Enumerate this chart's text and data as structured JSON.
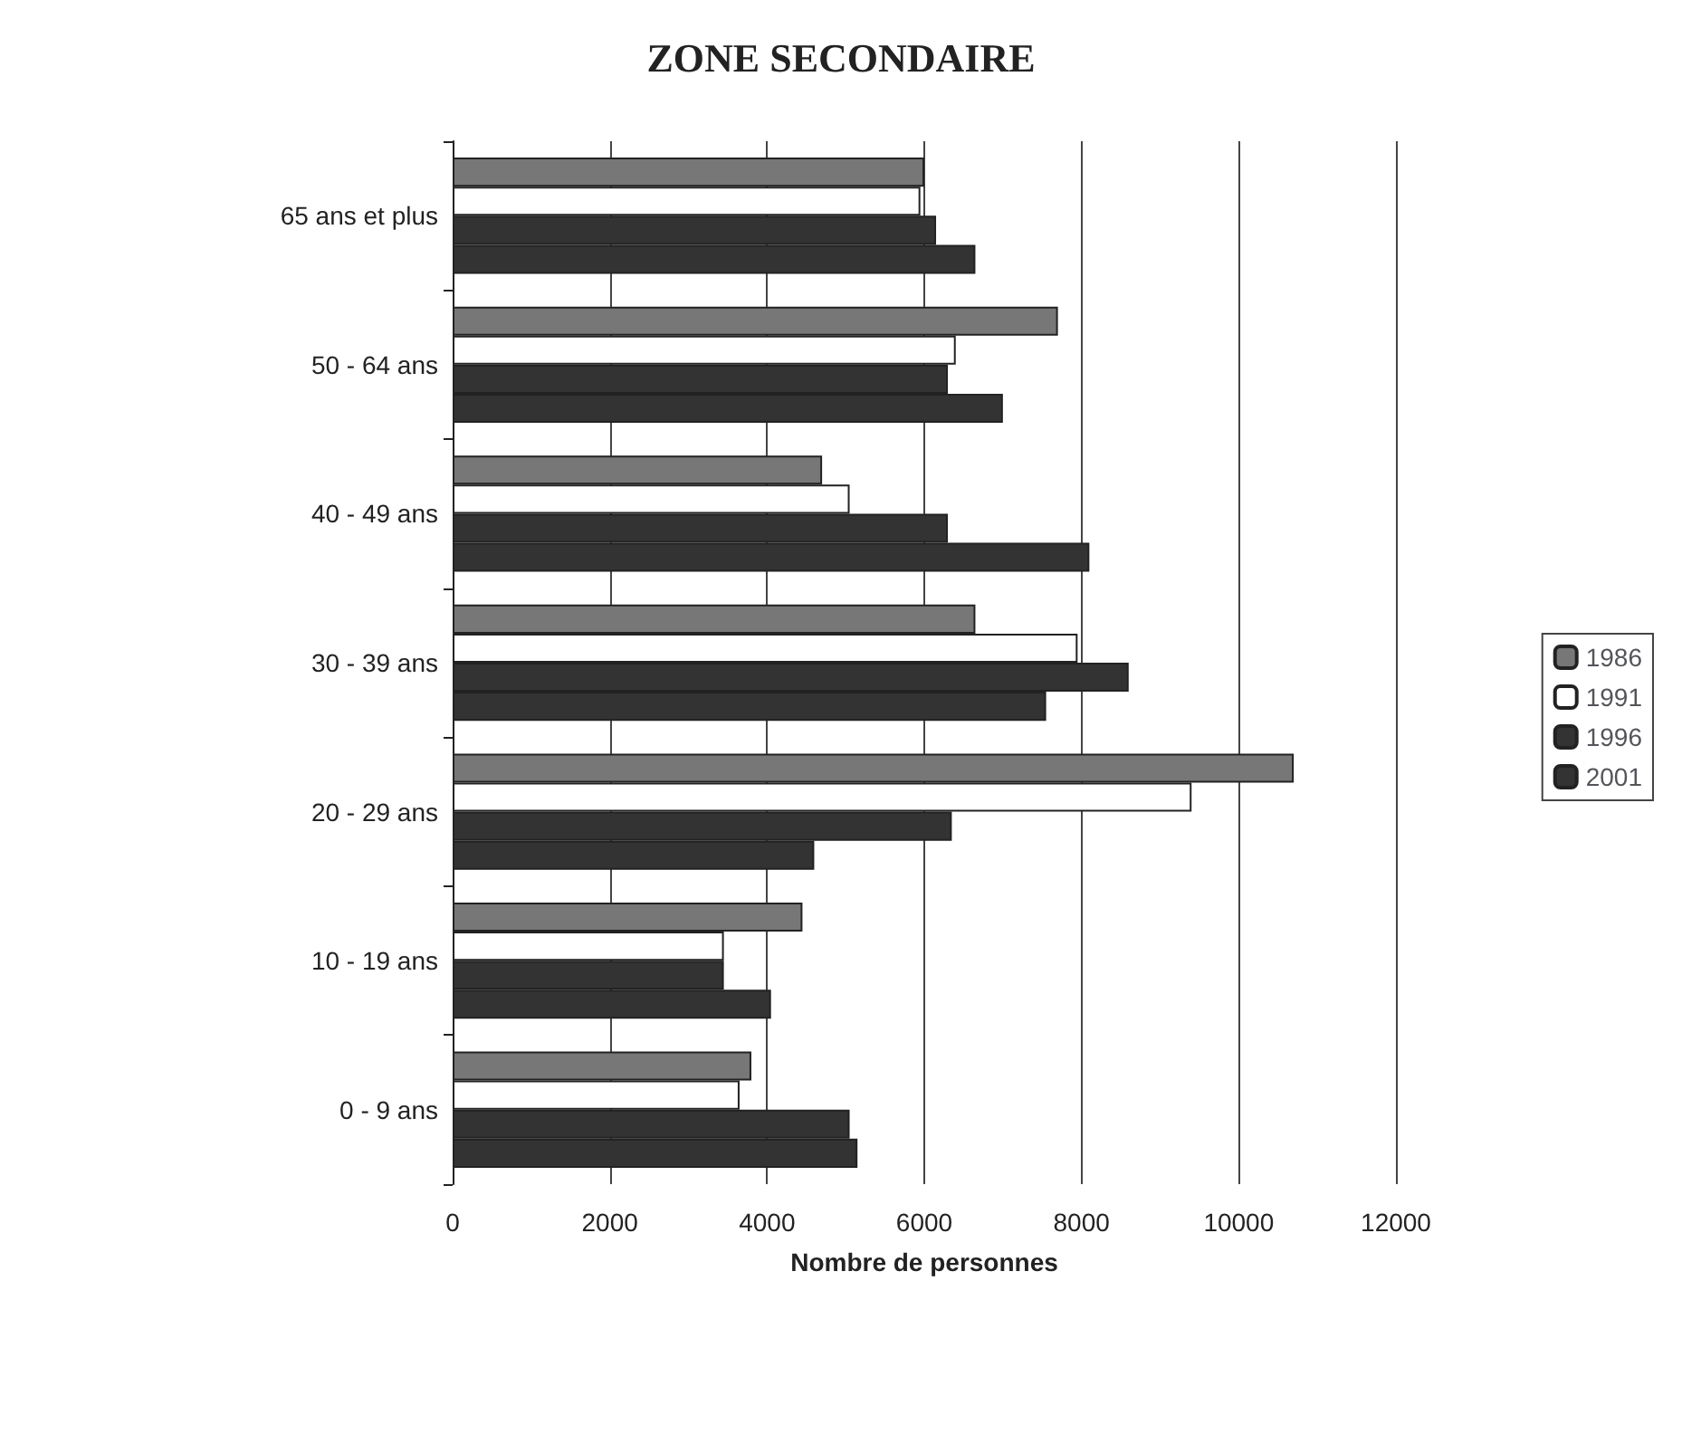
{
  "chart_data": {
    "type": "bar",
    "orientation": "horizontal",
    "title": "ZONE SECONDAIRE",
    "xlabel": "Nombre de personnes",
    "categories": [
      "65 ans et plus",
      "50 - 64 ans",
      "40 - 49 ans",
      "30 - 39 ans",
      "20 - 29 ans",
      "10 - 19 ans",
      "0 - 9 ans"
    ],
    "series": [
      {
        "name": "1986",
        "color": "#777777",
        "values": [
          6000,
          7700,
          4700,
          6650,
          10700,
          4450,
          3800
        ]
      },
      {
        "name": "1991",
        "color": "#ffffff",
        "values": [
          5950,
          6400,
          5050,
          7950,
          9400,
          3450,
          3650
        ]
      },
      {
        "name": "1996",
        "color": "#333333",
        "values": [
          6150,
          6300,
          6300,
          8600,
          6350,
          3450,
          5050
        ]
      },
      {
        "name": "2001",
        "color": "#333333",
        "values": [
          6650,
          7000,
          8100,
          7550,
          4600,
          4050,
          5150
        ]
      }
    ],
    "xlim": [
      0,
      12000
    ],
    "xticks": [
      0,
      2000,
      4000,
      6000,
      8000,
      10000,
      12000
    ],
    "grid": "x",
    "legend": "right"
  }
}
